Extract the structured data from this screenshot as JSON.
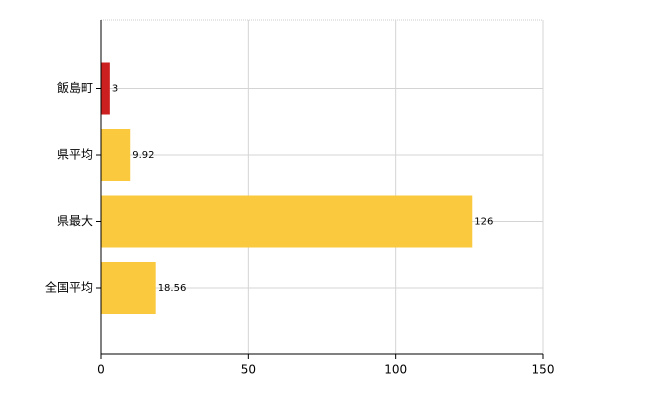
{
  "chart_data": {
    "type": "barh",
    "categories": [
      "飯島町",
      "県平均",
      "県最大",
      "全国平均"
    ],
    "values": [
      3,
      9.92,
      126,
      18.56
    ],
    "colors": [
      "#cc1f1f",
      "#fbc93d",
      "#fbc93d",
      "#fbc93d"
    ],
    "xlim": [
      0,
      150
    ],
    "xticks": [
      0,
      50,
      100,
      150
    ],
    "grid": true
  }
}
